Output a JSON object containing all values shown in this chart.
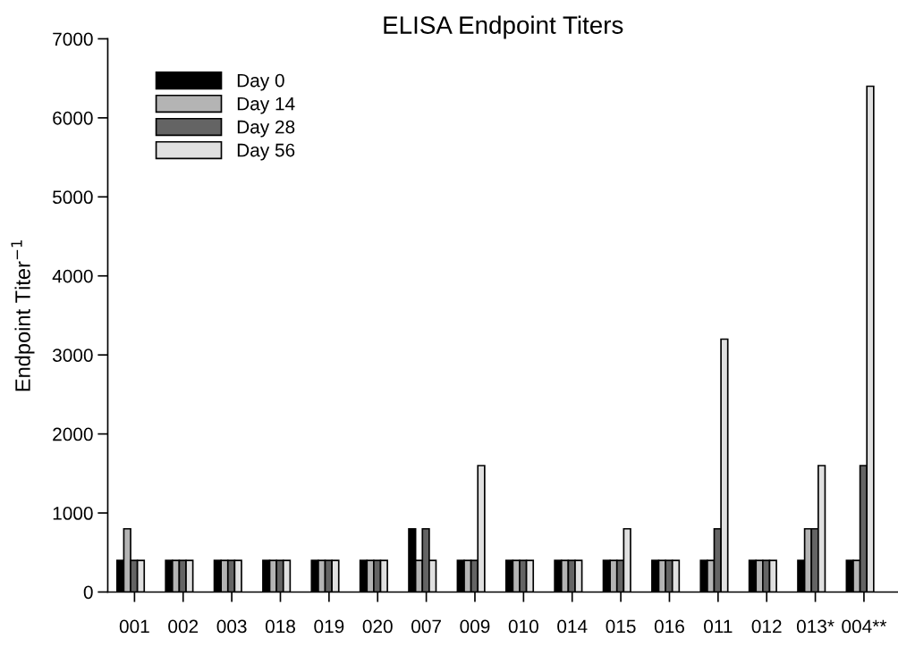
{
  "chart_data": {
    "type": "bar",
    "title": "ELISA Endpoint Titers",
    "ylabel": "Endpoint Titer$^{−1}$",
    "categories": [
      "001",
      "002",
      "003",
      "018",
      "019",
      "020",
      "007",
      "009",
      "010",
      "014",
      "015",
      "016",
      "011",
      "012",
      "013*",
      "004**"
    ],
    "series": [
      {
        "name": "Day 0",
        "color": "#000000",
        "values": [
          400,
          400,
          400,
          400,
          400,
          400,
          800,
          400,
          400,
          400,
          400,
          400,
          400,
          400,
          400,
          400
        ]
      },
      {
        "name": "Day 14",
        "color": "#b4b4b4",
        "values": [
          800,
          400,
          400,
          400,
          400,
          400,
          400,
          400,
          400,
          400,
          400,
          400,
          400,
          400,
          800,
          400
        ]
      },
      {
        "name": "Day 28",
        "color": "#646464",
        "values": [
          400,
          400,
          400,
          400,
          400,
          400,
          800,
          400,
          400,
          400,
          400,
          400,
          800,
          400,
          800,
          1600
        ]
      },
      {
        "name": "Day 56",
        "color": "#e0e0e0",
        "values": [
          400,
          400,
          400,
          400,
          400,
          400,
          400,
          1600,
          400,
          400,
          800,
          400,
          3200,
          400,
          1600,
          6400
        ]
      }
    ],
    "ylim": [
      0,
      7000
    ],
    "yticks": [
      0,
      1000,
      2000,
      3000,
      4000,
      5000,
      6000,
      7000
    ],
    "grid": false,
    "legend": "top left"
  }
}
